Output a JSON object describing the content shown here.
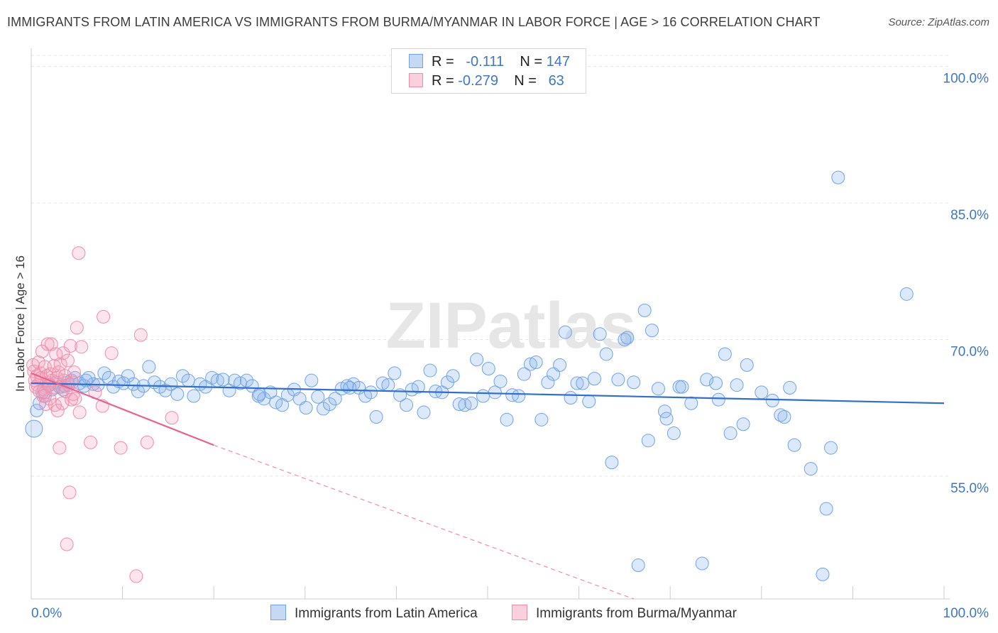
{
  "header": {
    "title": "IMMIGRANTS FROM LATIN AMERICA VS IMMIGRANTS FROM BURMA/MYANMAR IN LABOR FORCE | AGE > 16 CORRELATION CHART",
    "source": "Source: ZipAtlas.com"
  },
  "watermark": "ZIPatlas",
  "legend": {
    "rows": [
      {
        "r_label": "R =",
        "r_value": "-0.111",
        "n_label": "N =",
        "n_value": "147",
        "color": "#6fa3e6"
      },
      {
        "r_label": "R =",
        "r_value": "-0.279",
        "n_label": "N =",
        "n_value": "63",
        "color": "#f08aa8"
      }
    ]
  },
  "chart_data": {
    "type": "scatter",
    "title": "IMMIGRANTS FROM LATIN AMERICA VS IMMIGRANTS FROM BURMA/MYANMAR IN LABOR FORCE | AGE > 16 CORRELATION CHART",
    "xlabel": "",
    "ylabel": "In Labor Force | Age > 16",
    "xlim": [
      0,
      100
    ],
    "ylim": [
      41.5,
      102
    ],
    "x_tick_labels": [
      "0.0%",
      "100.0%"
    ],
    "y_ticks": [
      55,
      70,
      85,
      100
    ],
    "y_tick_labels": [
      "55.0%",
      "70.0%",
      "85.0%",
      "100.0%"
    ],
    "grid": true,
    "legend_position": "bottom",
    "series": [
      {
        "name": "Immigrants from Latin America",
        "color": "#6fa3e6",
        "trend": {
          "x": [
            0,
            100
          ],
          "y": [
            65.2,
            63.0
          ],
          "dashed_from": null
        },
        "points": [
          [
            0.3,
            60.2
          ],
          [
            0.6,
            62.2
          ],
          [
            0.9,
            63.0
          ],
          [
            1.2,
            64.2
          ],
          [
            1.5,
            63.8
          ],
          [
            1.9,
            65.0
          ],
          [
            2.3,
            64.5
          ],
          [
            2.7,
            65.3
          ],
          [
            3.1,
            64.8
          ],
          [
            3.5,
            64.5
          ],
          [
            4.0,
            65.3
          ],
          [
            4.4,
            65.5
          ],
          [
            4.8,
            65.8
          ],
          [
            5.3,
            65.2
          ],
          [
            5.8,
            64.9
          ],
          [
            6.3,
            65.8
          ],
          [
            6.8,
            65.1
          ],
          [
            7.3,
            65.0
          ],
          [
            8.0,
            66.3
          ],
          [
            8.5,
            65.8
          ],
          [
            9.0,
            64.8
          ],
          [
            9.6,
            65.4
          ],
          [
            10.1,
            65.2
          ],
          [
            10.6,
            66.0
          ],
          [
            11.2,
            65.1
          ],
          [
            11.7,
            64.3
          ],
          [
            12.3,
            64.9
          ],
          [
            12.9,
            67.0
          ],
          [
            13.5,
            65.3
          ],
          [
            14.1,
            64.8
          ],
          [
            14.7,
            64.4
          ],
          [
            15.3,
            65.1
          ],
          [
            16.0,
            64.0
          ],
          [
            16.6,
            66.0
          ],
          [
            17.2,
            65.5
          ],
          [
            17.8,
            63.8
          ],
          [
            18.5,
            65.1
          ],
          [
            19.1,
            64.8
          ],
          [
            19.8,
            65.8
          ],
          [
            20.4,
            65.5
          ],
          [
            21.0,
            65.6
          ],
          [
            21.7,
            64.4
          ],
          [
            22.3,
            65.5
          ],
          [
            22.9,
            65.2
          ],
          [
            23.6,
            65.5
          ],
          [
            24.2,
            64.9
          ],
          [
            24.9,
            63.8
          ],
          [
            25.5,
            63.5
          ],
          [
            26.2,
            64.2
          ],
          [
            26.8,
            63.1
          ],
          [
            27.5,
            62.8
          ],
          [
            28.1,
            63.9
          ],
          [
            28.8,
            64.5
          ],
          [
            29.4,
            63.5
          ],
          [
            30.1,
            62.5
          ],
          [
            30.7,
            65.5
          ],
          [
            31.4,
            63.7
          ],
          [
            32.0,
            62.4
          ],
          [
            32.7,
            62.9
          ],
          [
            33.3,
            63.5
          ],
          [
            34.0,
            64.6
          ],
          [
            34.6,
            64.9
          ],
          [
            35.3,
            65.1
          ],
          [
            35.9,
            64.7
          ],
          [
            36.6,
            63.8
          ],
          [
            37.2,
            64.2
          ],
          [
            37.8,
            61.5
          ],
          [
            38.5,
            65.2
          ],
          [
            39.1,
            65.0
          ],
          [
            39.8,
            66.3
          ],
          [
            40.4,
            63.9
          ],
          [
            41.1,
            62.8
          ],
          [
            41.7,
            64.5
          ],
          [
            42.4,
            64.8
          ],
          [
            43.0,
            62.0
          ],
          [
            43.7,
            66.6
          ],
          [
            44.3,
            64.3
          ],
          [
            45.0,
            64.2
          ],
          [
            45.6,
            65.3
          ],
          [
            46.2,
            66.0
          ],
          [
            46.9,
            62.9
          ],
          [
            47.5,
            62.8
          ],
          [
            48.2,
            63.0
          ],
          [
            48.8,
            67.8
          ],
          [
            49.5,
            63.8
          ],
          [
            50.1,
            66.8
          ],
          [
            50.8,
            64.2
          ],
          [
            51.4,
            65.4
          ],
          [
            52.1,
            61.2
          ],
          [
            52.7,
            63.9
          ],
          [
            53.4,
            63.8
          ],
          [
            54.0,
            66.2
          ],
          [
            54.7,
            67.3
          ],
          [
            55.3,
            67.5
          ],
          [
            55.9,
            61.2
          ],
          [
            56.6,
            65.3
          ],
          [
            57.2,
            66.2
          ],
          [
            57.9,
            67.2
          ],
          [
            58.5,
            70.8
          ],
          [
            59.1,
            63.6
          ],
          [
            59.8,
            65.2
          ],
          [
            60.4,
            65.2
          ],
          [
            61.1,
            63.2
          ],
          [
            61.7,
            65.7
          ],
          [
            62.3,
            70.6
          ],
          [
            63.0,
            68.4
          ],
          [
            63.6,
            56.5
          ],
          [
            64.3,
            65.6
          ],
          [
            65.0,
            70.0
          ],
          [
            65.3,
            70.2
          ],
          [
            66.0,
            65.3
          ],
          [
            66.5,
            45.2
          ],
          [
            67.2,
            73.2
          ],
          [
            67.6,
            58.9
          ],
          [
            68.0,
            71.0
          ],
          [
            68.7,
            64.6
          ],
          [
            69.4,
            62.1
          ],
          [
            69.6,
            61.3
          ],
          [
            70.4,
            59.7
          ],
          [
            71.0,
            64.8
          ],
          [
            71.3,
            64.8
          ],
          [
            72.3,
            63.0
          ],
          [
            73.5,
            45.4
          ],
          [
            74.0,
            65.6
          ],
          [
            75.0,
            65.2
          ],
          [
            75.3,
            63.4
          ],
          [
            76.0,
            68.4
          ],
          [
            76.6,
            59.7
          ],
          [
            77.3,
            65.0
          ],
          [
            78.0,
            60.7
          ],
          [
            78.4,
            67.2
          ],
          [
            80.0,
            64.2
          ],
          [
            81.2,
            63.3
          ],
          [
            82.1,
            61.7
          ],
          [
            82.5,
            61.5
          ],
          [
            83.1,
            64.7
          ],
          [
            83.6,
            58.4
          ],
          [
            85.4,
            55.8
          ],
          [
            87.1,
            51.4
          ],
          [
            87.6,
            58.1
          ],
          [
            86.7,
            44.2
          ],
          [
            88.4,
            87.8
          ],
          [
            95.9,
            75.0
          ],
          [
            3.7,
            64.9
          ],
          [
            6.0,
            65.5
          ],
          [
            25.0,
            64.0
          ],
          [
            34.9,
            64.7
          ]
        ]
      },
      {
        "name": "Immigrants from Burma/Myanmar",
        "color": "#f08aa8",
        "trend": {
          "x": [
            0,
            20,
            66
          ],
          "y": [
            66.3,
            58.4,
            41.5
          ],
          "dashed_from": 20
        },
        "points": [
          [
            0.2,
            67.2
          ],
          [
            0.3,
            66.5
          ],
          [
            0.4,
            65.5
          ],
          [
            0.5,
            64.8
          ],
          [
            0.6,
            66.0
          ],
          [
            0.7,
            65.0
          ],
          [
            0.8,
            67.5
          ],
          [
            0.9,
            64.3
          ],
          [
            1.0,
            66.3
          ],
          [
            1.1,
            65.8
          ],
          [
            1.2,
            68.7
          ],
          [
            1.3,
            63.8
          ],
          [
            1.4,
            64.5
          ],
          [
            1.5,
            67.0
          ],
          [
            1.6,
            62.9
          ],
          [
            1.7,
            66.0
          ],
          [
            1.8,
            69.5
          ],
          [
            1.9,
            65.2
          ],
          [
            2.0,
            63.5
          ],
          [
            2.1,
            66.2
          ],
          [
            2.2,
            69.5
          ],
          [
            2.3,
            65.5
          ],
          [
            2.4,
            64.7
          ],
          [
            2.5,
            67.1
          ],
          [
            2.6,
            62.8
          ],
          [
            2.7,
            68.4
          ],
          [
            2.8,
            65.8
          ],
          [
            2.9,
            62.2
          ],
          [
            3.0,
            66.4
          ],
          [
            3.1,
            58.1
          ],
          [
            3.2,
            67.3
          ],
          [
            3.3,
            64.8
          ],
          [
            3.4,
            63.0
          ],
          [
            3.5,
            68.5
          ],
          [
            3.6,
            65.5
          ],
          [
            3.7,
            66.0
          ],
          [
            3.8,
            64.3
          ],
          [
            3.9,
            47.5
          ],
          [
            4.0,
            67.7
          ],
          [
            4.1,
            65.0
          ],
          [
            4.2,
            53.2
          ],
          [
            4.3,
            69.3
          ],
          [
            4.4,
            63.4
          ],
          [
            4.5,
            65.3
          ],
          [
            4.6,
            64.0
          ],
          [
            4.7,
            66.4
          ],
          [
            4.8,
            63.5
          ],
          [
            5.0,
            71.3
          ],
          [
            5.2,
            79.5
          ],
          [
            5.3,
            62.0
          ],
          [
            5.5,
            69.2
          ],
          [
            6.5,
            58.7
          ],
          [
            7.0,
            64.2
          ],
          [
            7.8,
            62.7
          ],
          [
            7.9,
            72.5
          ],
          [
            8.8,
            68.5
          ],
          [
            9.8,
            58.1
          ],
          [
            11.5,
            44.0
          ],
          [
            12.0,
            70.5
          ],
          [
            12.7,
            58.7
          ],
          [
            15.4,
            61.4
          ],
          [
            2.0,
            65.0
          ],
          [
            1.5,
            64.2
          ]
        ]
      }
    ]
  }
}
